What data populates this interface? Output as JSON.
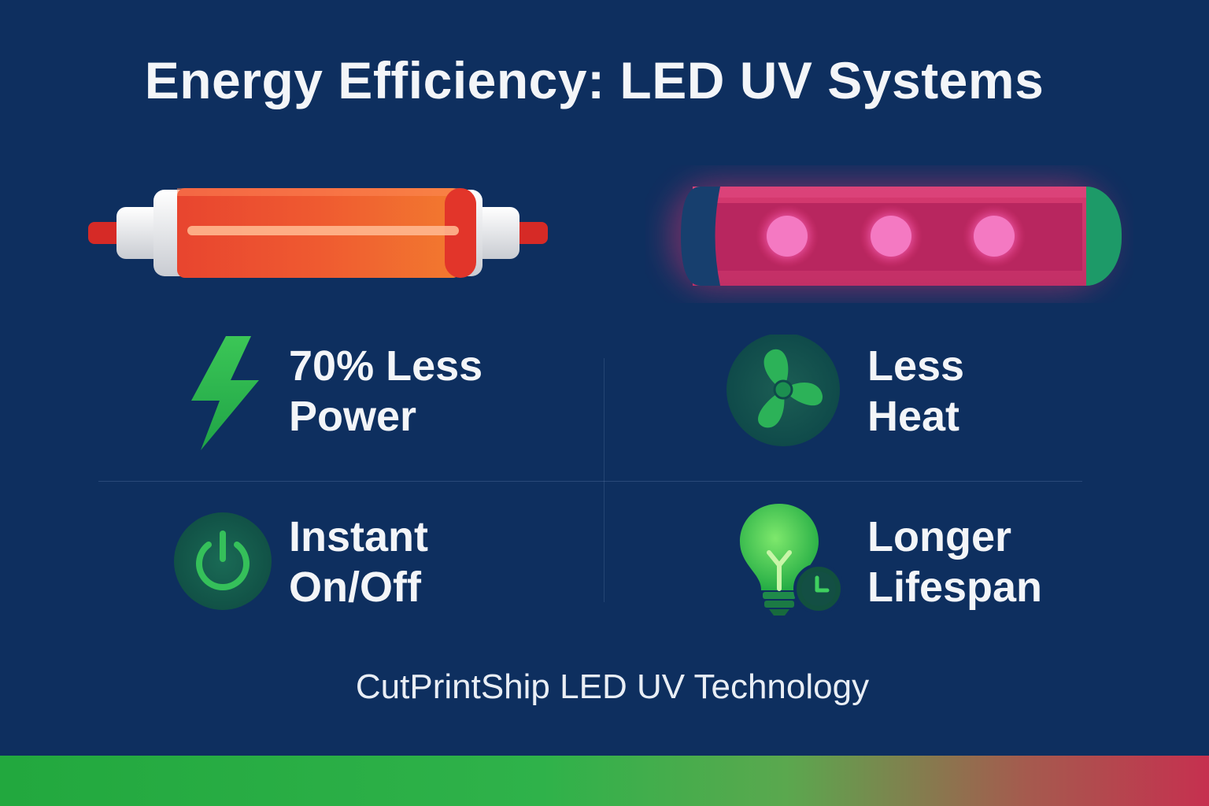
{
  "title": "Energy Efficiency: LED UV Systems",
  "lamps": {
    "left": {
      "icon": "mercury-uv-lamp-icon"
    },
    "right": {
      "icon": "led-uv-lamp-icon"
    }
  },
  "features": [
    {
      "icon": "lightning-bolt-icon",
      "line1": "70% Less",
      "line2": "Power"
    },
    {
      "icon": "fan-icon",
      "line1": "Less",
      "line2": "Heat"
    },
    {
      "icon": "power-button-icon",
      "line1": "Instant",
      "line2": "On/Off"
    },
    {
      "icon": "lightbulb-clock-icon",
      "line1": "Longer",
      "line2": "Lifespan"
    }
  ],
  "footer": "CutPrintShip LED UV Technology",
  "colors": {
    "background": "#0e2f5f",
    "accent_green": "#2fbf4a",
    "accent_red": "#e8452f",
    "accent_pink": "#e0336f"
  }
}
